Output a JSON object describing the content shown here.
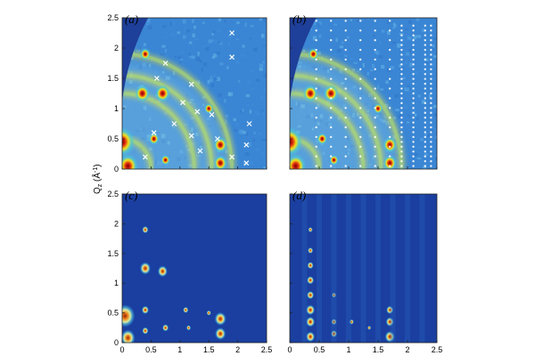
{
  "figure": {
    "ylabel": "Q",
    "ylabel_sub": "z",
    "ylabel_unit": " (Å",
    "ylabel_exp": "-1",
    "ylabel_close": ")"
  },
  "chart_data": [
    {
      "type": "heatmap",
      "panel": "a",
      "panel_label": "(a)",
      "description_key": "experimental-gisaxs-with-x-markers",
      "xlim": [
        0,
        2.5
      ],
      "ylim": [
        0,
        2.5
      ],
      "xticks": [
        "0",
        "0.5",
        "1",
        "1.5",
        "2",
        "2.5"
      ],
      "yticks": [
        "0",
        "0.5",
        "1",
        "1.5",
        "2",
        "2.5"
      ],
      "show_xticklabels": false,
      "show_yticklabels": true,
      "rings": [
        0.5,
        1.25,
        1.55,
        1.9
      ],
      "spots": [
        [
          0.0,
          0.45,
          2.2
        ],
        [
          0.1,
          0.05,
          1.8
        ],
        [
          0.35,
          1.25,
          1.3
        ],
        [
          0.4,
          1.9,
          0.9
        ],
        [
          0.7,
          1.25,
          1.3
        ],
        [
          1.7,
          0.4,
          1.2
        ],
        [
          1.7,
          0.1,
          1.2
        ],
        [
          1.5,
          1.0,
          0.8
        ],
        [
          0.55,
          0.5,
          0.9
        ],
        [
          0.75,
          0.15,
          0.8
        ]
      ],
      "markers": [
        [
          1.9,
          2.25
        ],
        [
          1.9,
          1.85
        ],
        [
          0.75,
          1.75
        ],
        [
          0.6,
          1.5
        ],
        [
          1.2,
          1.4
        ],
        [
          1.05,
          1.1
        ],
        [
          1.3,
          0.95
        ],
        [
          1.55,
          0.9
        ],
        [
          0.9,
          0.75
        ],
        [
          1.2,
          0.55
        ],
        [
          1.35,
          0.3
        ],
        [
          1.65,
          0.5
        ],
        [
          2.15,
          0.4
        ],
        [
          2.15,
          0.1
        ],
        [
          1.9,
          0.2
        ],
        [
          0.55,
          0.6
        ],
        [
          0.4,
          0.2
        ],
        [
          2.2,
          0.75
        ]
      ]
    },
    {
      "type": "heatmap",
      "panel": "b",
      "panel_label": "(b)",
      "description_key": "experimental-gisaxs-with-dot-markers",
      "xlim": [
        0,
        2.5
      ],
      "ylim": [
        0,
        2.5
      ],
      "xticks": [
        "0",
        "0.5",
        "1",
        "1.5",
        "2",
        "2.5"
      ],
      "yticks": [
        "0",
        "0.5",
        "1",
        "1.5",
        "2",
        "2.5"
      ],
      "show_xticklabels": false,
      "show_yticklabels": false,
      "rings": [
        0.5,
        1.25,
        1.55,
        1.9
      ],
      "spots": [
        [
          0.0,
          0.45,
          2.2
        ],
        [
          0.1,
          0.05,
          1.8
        ],
        [
          0.35,
          1.25,
          1.3
        ],
        [
          0.4,
          1.9,
          0.9
        ],
        [
          0.7,
          1.25,
          1.3
        ],
        [
          1.7,
          0.4,
          1.2
        ],
        [
          1.7,
          0.1,
          1.2
        ],
        [
          1.5,
          1.0,
          0.8
        ],
        [
          0.55,
          0.5,
          0.9
        ],
        [
          0.75,
          0.15,
          0.8
        ]
      ],
      "dot_columns": [
        0.45,
        0.7,
        0.95,
        1.2,
        1.45,
        1.7,
        1.9,
        2.1,
        2.3,
        2.4
      ]
    },
    {
      "type": "heatmap",
      "panel": "c",
      "panel_label": "(c)",
      "description_key": "simulated-pattern-model-1",
      "xlim": [
        0,
        2.5
      ],
      "ylim": [
        0,
        2.5
      ],
      "xticks": [
        "0",
        "0.5",
        "1",
        "1.5",
        "2",
        "2.5"
      ],
      "yticks": [
        "0",
        "0.5",
        "1",
        "1.5",
        "2",
        "2.5"
      ],
      "show_xticklabels": true,
      "show_yticklabels": true,
      "spots": [
        [
          0.05,
          0.45,
          2.2
        ],
        [
          0.1,
          0.08,
          1.6
        ],
        [
          0.4,
          1.25,
          1.2
        ],
        [
          0.4,
          1.9,
          0.7
        ],
        [
          0.4,
          0.55,
          0.8
        ],
        [
          0.7,
          1.2,
          1.1
        ],
        [
          0.75,
          0.25,
          0.7
        ],
        [
          1.1,
          0.55,
          0.6
        ],
        [
          1.7,
          0.4,
          1.3
        ],
        [
          1.7,
          0.15,
          1.2
        ],
        [
          1.5,
          0.5,
          0.5
        ],
        [
          1.15,
          0.25,
          0.5
        ],
        [
          0.4,
          0.2,
          0.7
        ]
      ]
    },
    {
      "type": "heatmap",
      "panel": "d",
      "panel_label": "(d)",
      "description_key": "simulated-pattern-model-2",
      "xlim": [
        0,
        2.5
      ],
      "ylim": [
        0,
        2.5
      ],
      "xticks": [
        "0",
        "0.5",
        "1",
        "1.5",
        "2",
        "2.5"
      ],
      "yticks": [
        "0",
        "0.5",
        "1",
        "1.5",
        "2",
        "2.5"
      ],
      "show_xticklabels": true,
      "show_yticklabels": false,
      "spots": [
        [
          0.35,
          0.1,
          1.0
        ],
        [
          0.35,
          0.35,
          1.0
        ],
        [
          0.35,
          0.55,
          1.0
        ],
        [
          0.35,
          0.8,
          0.8
        ],
        [
          0.35,
          1.05,
          0.8
        ],
        [
          0.35,
          1.3,
          0.7
        ],
        [
          0.35,
          1.55,
          0.6
        ],
        [
          0.35,
          1.9,
          0.5
        ],
        [
          0.75,
          0.15,
          0.7
        ],
        [
          0.75,
          0.35,
          0.6
        ],
        [
          0.75,
          0.8,
          0.5
        ],
        [
          1.05,
          0.35,
          0.5
        ],
        [
          1.7,
          0.1,
          1.1
        ],
        [
          1.7,
          0.35,
          0.9
        ],
        [
          1.7,
          0.55,
          0.8
        ],
        [
          1.35,
          0.25,
          0.4
        ]
      ]
    }
  ]
}
